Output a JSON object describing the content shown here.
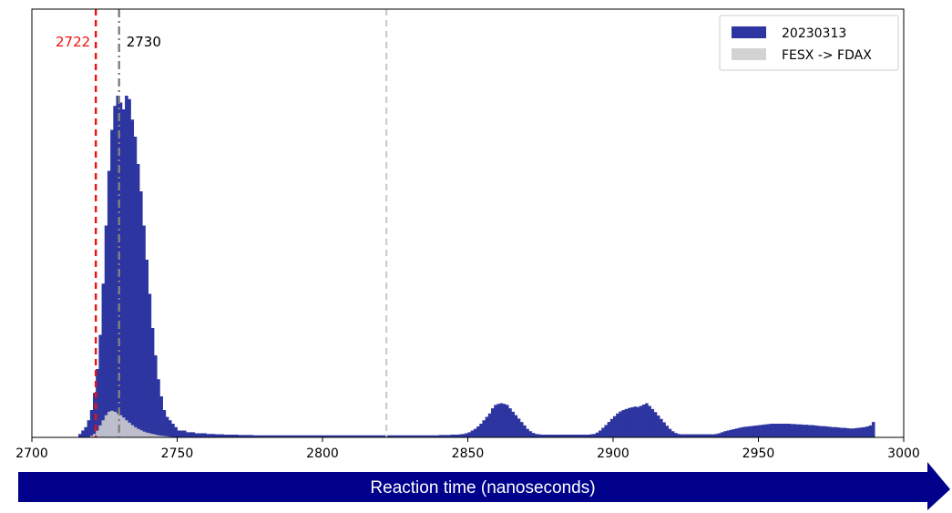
{
  "chart_data": {
    "type": "histogram",
    "xlim": [
      2700,
      3000
    ],
    "x_ticks": [
      "2700",
      "2750",
      "2800",
      "2850",
      "2900",
      "2950",
      "3000"
    ],
    "x_tick_values": [
      2700,
      2750,
      2800,
      2850,
      2900,
      2950,
      3000
    ],
    "y_axis_visible": false,
    "grid": false,
    "legend_position": "top-right",
    "bin_width": 1,
    "series": [
      {
        "name": "20230313",
        "color": "#2d35a0",
        "x_start": 2716,
        "values": [
          1,
          2,
          3,
          5,
          8,
          13,
          20,
          30,
          45,
          62,
          78,
          90,
          97,
          100,
          98,
          96,
          100,
          99,
          93,
          88,
          80,
          72,
          62,
          52,
          42,
          32,
          24,
          17,
          12,
          8,
          6,
          5,
          4,
          3,
          2,
          2,
          2,
          1.5,
          1.5,
          1.5,
          1.2,
          1.2,
          1.2,
          1.2,
          1.0,
          1.0,
          1.0,
          0.9,
          0.9,
          0.9,
          0.8,
          0.8,
          0.8,
          0.8,
          0.8,
          0.7,
          0.7,
          0.7,
          0.7,
          0.7,
          0.6,
          0.6,
          0.6,
          0.6,
          0.6,
          0.6,
          0.6,
          0.6,
          0.6,
          0.6,
          0.6,
          0.6,
          0.6,
          0.6,
          0.6,
          0.6,
          0.6,
          0.6,
          0.6,
          0.6,
          0.6,
          0.6,
          0.6,
          0.6,
          0.6,
          0.6,
          0.6,
          0.6,
          0.6,
          0.6,
          0.6,
          0.6,
          0.6,
          0.6,
          0.6,
          0.6,
          0.6,
          0.6,
          0.6,
          0.6,
          0.6,
          0.6,
          0.6,
          0.6,
          0.6,
          0.6,
          0.6,
          0.6,
          0.6,
          0.6,
          0.6,
          0.6,
          0.6,
          0.6,
          0.6,
          0.6,
          0.6,
          0.6,
          0.6,
          0.6,
          0.6,
          0.6,
          0.6,
          0.6,
          0.7,
          0.7,
          0.7,
          0.7,
          0.8,
          0.8,
          0.8,
          0.9,
          1.0,
          1.2,
          1.5,
          2,
          2.5,
          3.2,
          4,
          5,
          6,
          7,
          8.5,
          9.5,
          9.8,
          10,
          9.8,
          9.5,
          8.5,
          7.5,
          6.5,
          5.5,
          4.5,
          3.5,
          2.5,
          1.8,
          1.3,
          1.0,
          0.9,
          0.8,
          0.8,
          0.8,
          0.8,
          0.8,
          0.8,
          0.8,
          0.8,
          0.8,
          0.8,
          0.8,
          0.8,
          0.8,
          0.8,
          0.8,
          0.8,
          0.8,
          0.9,
          1.0,
          1.4,
          2.0,
          2.8,
          3.6,
          4.5,
          5.4,
          6.2,
          7.0,
          7.6,
          8.0,
          8.3,
          8.6,
          8.8,
          9.0,
          8.9,
          9.2,
          9.6,
          10.0,
          9.2,
          8.3,
          7.4,
          6.4,
          5.4,
          4.4,
          3.4,
          2.5,
          1.8,
          1.3,
          1.0,
          0.9,
          0.9,
          0.9,
          0.9,
          0.9,
          0.9,
          0.9,
          0.9,
          0.9,
          0.9,
          0.9,
          0.9,
          1.0,
          1.2,
          1.5,
          1.8,
          2.0,
          2.2,
          2.4,
          2.6,
          2.8,
          3.0,
          3.1,
          3.2,
          3.3,
          3.4,
          3.5,
          3.6,
          3.7,
          3.8,
          3.9,
          4.0,
          4.0,
          4.0,
          4.0,
          4.0,
          4.0,
          4.0,
          3.9,
          3.9,
          3.8,
          3.8,
          3.7,
          3.7,
          3.6,
          3.6,
          3.5,
          3.4,
          3.3,
          3.3,
          3.2,
          3.1,
          3.0,
          3.0,
          2.9,
          2.8,
          2.8,
          2.7,
          2.6,
          2.6,
          2.7,
          2.8,
          2.9,
          3.0,
          3.2,
          3.5,
          4.5
        ]
      },
      {
        "name": "FESX -> FDAX",
        "color": "#d3d3d3",
        "x_start": 2720,
        "values": [
          0.5,
          1,
          2,
          3.5,
          5,
          6.5,
          7.5,
          7.8,
          7.5,
          7,
          6.5,
          5.8,
          5,
          4.3,
          3.6,
          3,
          2.5,
          2.1,
          1.7,
          1.4,
          1.2,
          1.0,
          0.8,
          0.6,
          0.5,
          0.4,
          0.3,
          0.2
        ]
      }
    ],
    "reference_lines": [
      {
        "x": 2722,
        "label": "2722",
        "color": "#ee1111",
        "style": "dashed"
      },
      {
        "x": 2730,
        "label": "2730",
        "color": "#808080",
        "style": "dashdot"
      },
      {
        "x": 2822,
        "label": "",
        "color": "#c8c8c8",
        "style": "dashed"
      }
    ],
    "arrow_label": "Reaction time (nanoseconds)",
    "arrow_color": "#00008b"
  }
}
